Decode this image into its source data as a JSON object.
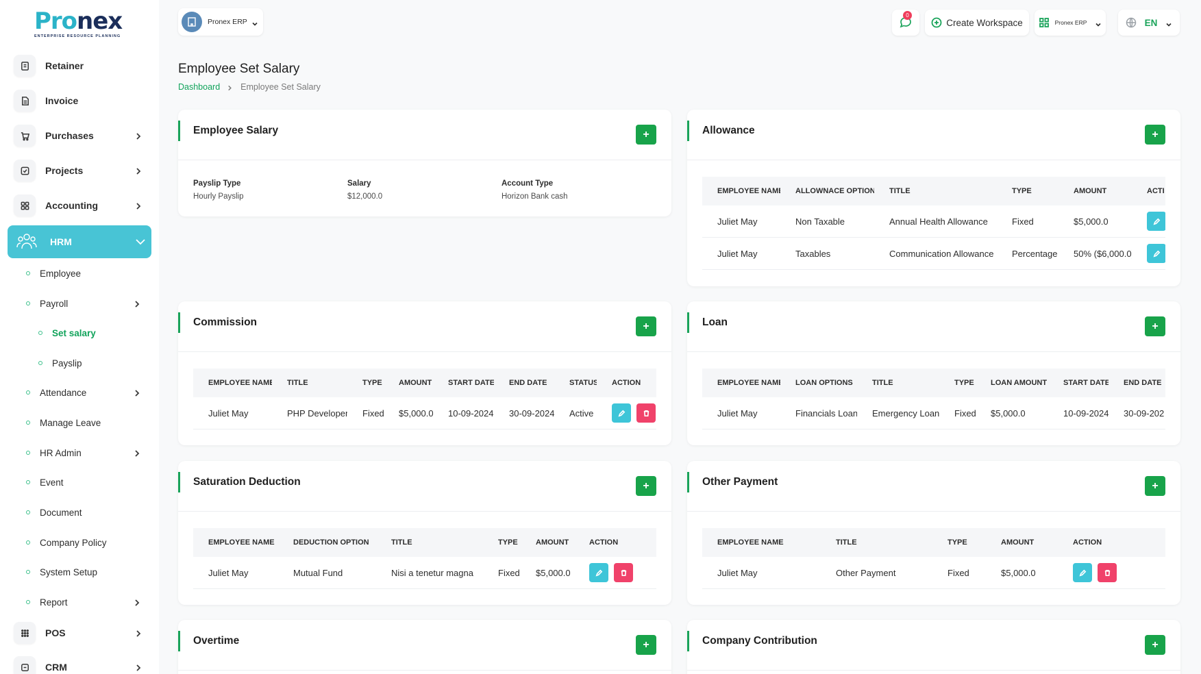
{
  "brand": {
    "logo_p1": "Pro",
    "logo_p2": "nex",
    "tagline": "ENTERPRISE RESOURCE PLANNING"
  },
  "sidebar": {
    "items": [
      {
        "label": "Retainer",
        "icon": "retainer-icon"
      },
      {
        "label": "Invoice",
        "icon": "invoice-icon"
      },
      {
        "label": "Purchases",
        "icon": "cart-icon"
      },
      {
        "label": "Projects",
        "icon": "projects-icon"
      },
      {
        "label": "Accounting",
        "icon": "accounting-icon"
      }
    ],
    "active": {
      "label": "HRM",
      "icon": "team-icon"
    },
    "hrm_sub": [
      {
        "label": "Employee"
      },
      {
        "label": "Payroll"
      },
      {
        "label": "Set salary"
      },
      {
        "label": "Payslip"
      },
      {
        "label": "Attendance"
      },
      {
        "label": "Manage Leave"
      },
      {
        "label": "HR Admin"
      },
      {
        "label": "Event"
      },
      {
        "label": "Document"
      },
      {
        "label": "Company Policy"
      },
      {
        "label": "System Setup"
      },
      {
        "label": "Report"
      }
    ],
    "after": [
      {
        "label": "POS",
        "icon": "pos-icon"
      },
      {
        "label": "CRM",
        "icon": "crm-icon"
      }
    ]
  },
  "header": {
    "workspace": "Pronex ERP",
    "notification_count": "0",
    "create_workspace": "Create Workspace",
    "erp_selector": "Pronex ERP",
    "language": "EN"
  },
  "page": {
    "title": "Employee Set Salary",
    "breadcrumb": {
      "home": "Dashboard",
      "current": "Employee Set Salary"
    }
  },
  "employee_salary": {
    "title": "Employee Salary",
    "fields": [
      {
        "label": "Payslip Type",
        "value": "Hourly Payslip"
      },
      {
        "label": "Salary",
        "value": "$12,000.0"
      },
      {
        "label": "Account Type",
        "value": "Horizon Bank cash"
      }
    ]
  },
  "allowance": {
    "title": "Allowance",
    "headers": [
      "EMPLOYEE NAME",
      "ALLOWNACE OPTION",
      "TITLE",
      "TYPE",
      "AMOUNT",
      "ACTI"
    ],
    "rows": [
      [
        "Juliet May",
        "Non Taxable",
        "Annual Health Allowance",
        "Fixed",
        "$5,000.0"
      ],
      [
        "Juliet May",
        "Taxables",
        "Communication Allowance",
        "Percentage",
        "50% ($6,000.0)"
      ]
    ]
  },
  "commission": {
    "title": "Commission",
    "headers": [
      "EMPLOYEE NAME",
      "TITLE",
      "TYPE",
      "AMOUNT",
      "START DATE",
      "END DATE",
      "STATUS",
      "ACTION"
    ],
    "rows": [
      [
        "Juliet May",
        "PHP Developer",
        "Fixed",
        "$5,000.0",
        "10-09-2024",
        "30-09-2024",
        "Active"
      ]
    ]
  },
  "loan": {
    "title": "Loan",
    "headers": [
      "EMPLOYEE NAME",
      "LOAN OPTIONS",
      "TITLE",
      "TYPE",
      "LOAN AMOUNT",
      "START DATE",
      "END DATE"
    ],
    "rows": [
      [
        "Juliet May",
        "Financials Loan",
        "Emergency Loan",
        "Fixed",
        "$5,000.0",
        "10-09-2024",
        "30-09-202"
      ]
    ]
  },
  "saturation_deduction": {
    "title": "Saturation Deduction",
    "headers": [
      "EMPLOYEE NAME",
      "DEDUCTION OPTION",
      "TITLE",
      "TYPE",
      "AMOUNT",
      "ACTION"
    ],
    "rows": [
      [
        "Juliet May",
        "Mutual Fund",
        "Nisi a tenetur magna",
        "Fixed",
        "$5,000.0"
      ]
    ]
  },
  "other_payment": {
    "title": "Other Payment",
    "headers": [
      "EMPLOYEE NAME",
      "TITLE",
      "TYPE",
      "AMOUNT",
      "ACTION"
    ],
    "rows": [
      [
        "Juliet May",
        "Other Payment",
        "Fixed",
        "$5,000.0"
      ]
    ]
  },
  "overtime": {
    "title": "Overtime"
  },
  "company_contribution": {
    "title": "Company Contribution"
  },
  "add_label": "+",
  "colors": {
    "primary": "#18a34a",
    "accent": "#48c4d5",
    "edit": "#3ec5d8",
    "delete": "#f0426a"
  }
}
